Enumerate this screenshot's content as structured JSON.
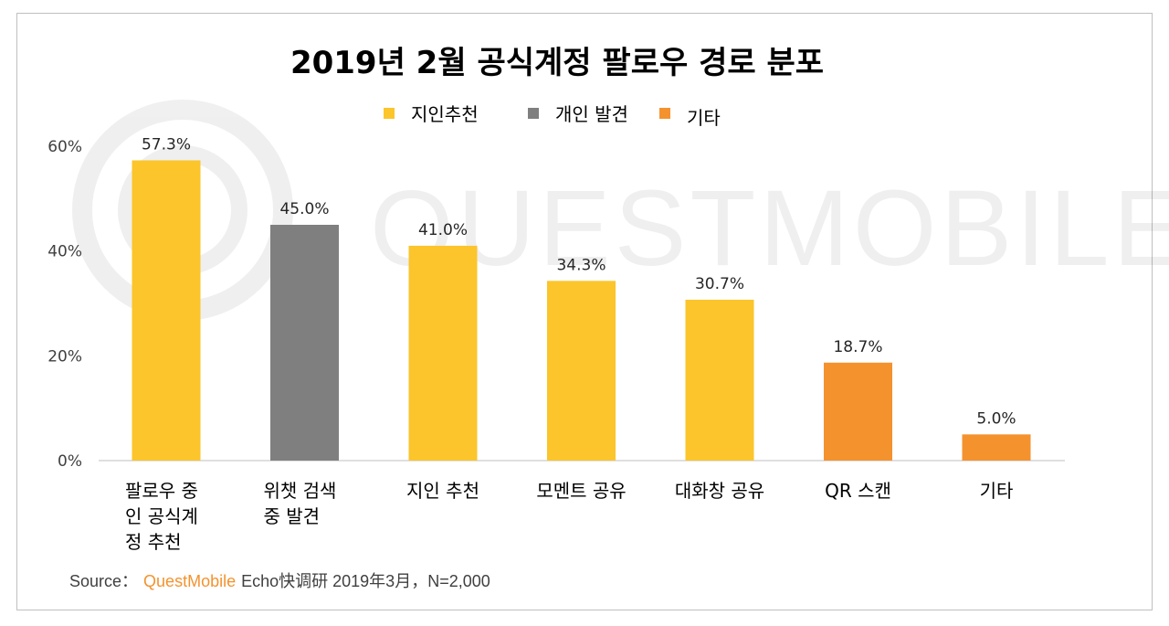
{
  "watermark": "QUESTMOBILE",
  "chart_data": {
    "type": "bar",
    "title": "2019년 2월 공식계정 팔로우 경로 분포",
    "legend": [
      {
        "name": "지인추천",
        "color": "#FBC52B"
      },
      {
        "name": "개인 발견",
        "color": "#7F7F7F"
      },
      {
        "name": "기타",
        "color": "#F4922E"
      }
    ],
    "legend_position": "top",
    "categories": [
      [
        "팔로우 중",
        "인 공식계",
        "정 추천"
      ],
      [
        "위챗 검색",
        "중 발견"
      ],
      [
        "지인 추천"
      ],
      [
        "모멘트 공유"
      ],
      [
        "대화창 공유"
      ],
      [
        "QR 스캔"
      ],
      [
        "기타"
      ]
    ],
    "values": [
      57.3,
      45.0,
      41.0,
      34.3,
      30.7,
      18.7,
      5.0
    ],
    "data_labels": [
      "57.3%",
      "45.0%",
      "41.0%",
      "34.3%",
      "30.7%",
      "18.7%",
      "5.0%"
    ],
    "bar_groups": [
      "지인추천",
      "개인 발견",
      "지인추천",
      "지인추천",
      "지인추천",
      "기타",
      "기타"
    ],
    "ylim": [
      0,
      60
    ],
    "yticks": [
      0,
      20,
      40,
      60
    ],
    "ytick_labels": [
      "0%",
      "20%",
      "40%",
      "60%"
    ],
    "grid": false
  },
  "source": {
    "label": "Source：",
    "brand": "QuestMobile",
    "text": "Echo快调研 2019年3月，N=2,000"
  }
}
